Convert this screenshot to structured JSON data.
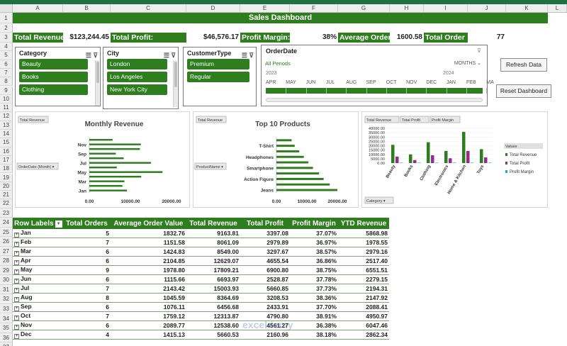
{
  "columns": [
    "A",
    "B",
    "C",
    "D",
    "E",
    "F",
    "G",
    "H",
    "I",
    "J",
    "K",
    "L"
  ],
  "rows": [
    "1",
    "2",
    "3",
    "4",
    "5",
    "6",
    "7",
    "8",
    "9",
    "10",
    "11",
    "12",
    "13",
    "14",
    "15",
    "16",
    "17",
    "18",
    "19",
    "20",
    "21",
    "22",
    "23",
    "24",
    "25",
    "26",
    "27",
    "28",
    "29",
    "30",
    "31",
    "32",
    "33",
    "34",
    "35",
    "36",
    "37"
  ],
  "title": "Sales Dashboard",
  "kpis": {
    "total_revenue_label": "Total Revenue",
    "total_revenue_value": "$123,244.45",
    "total_profit_label": "Total Profit:",
    "total_profit_value": "$46,576.17",
    "profit_margin_label": "Profit Margin:",
    "profit_margin_value": "38%",
    "avg_order_label": "Average Order",
    "avg_order_value": "1600.58",
    "total_order_label": "Total Order",
    "total_order_value": "77"
  },
  "slicers": {
    "category": {
      "title": "Category",
      "items": [
        "Beauty",
        "Books",
        "Clothing"
      ]
    },
    "city": {
      "title": "City",
      "items": [
        "London",
        "Los Angeles",
        "New York City"
      ]
    },
    "customer_type": {
      "title": "CustomerType",
      "items": [
        "Premium",
        "Regular"
      ]
    }
  },
  "timeline": {
    "title": "OrderDate",
    "all_periods": "All Periods",
    "period": "MONTHS",
    "years": [
      "2023",
      "2024"
    ],
    "months": [
      "APR",
      "MAY",
      "JUN",
      "JUL",
      "AUG",
      "SEP",
      "OCT",
      "NOV",
      "DEC",
      "JAN",
      "FEB",
      "MA"
    ]
  },
  "buttons": {
    "refresh": "Refresh Data",
    "reset": "Reset Dashboard"
  },
  "chart_data": [
    {
      "type": "bar",
      "title": "Monthly Revenue",
      "field_value": "Total Revenue",
      "field_axis": "OrderDate (Month)",
      "categories": [
        "Jan",
        "Feb",
        "Mar",
        "Apr",
        "May",
        "Jun",
        "Jul",
        "Aug",
        "Sep",
        "Oct",
        "Nov",
        "Dec"
      ],
      "values": [
        9163.81,
        8061.09,
        8549.0,
        12629.07,
        17809.21,
        6693.97,
        15003.93,
        8364.69,
        6456.68,
        12313.87,
        12538.6,
        5660.53
      ],
      "tick_labels": [
        "Jan",
        "Mar",
        "May",
        "Jul",
        "Sep",
        "Nov"
      ],
      "xlim": [
        0,
        20000
      ],
      "xticks": [
        "0.00",
        "10000.00",
        "20000.00"
      ]
    },
    {
      "type": "bar",
      "title": "Top 10 Products",
      "field_value": "Total Revenue",
      "field_axis": "ProductName",
      "categories": [
        "Jeans",
        "",
        "Action Figure",
        "",
        "Smartphone",
        "",
        "Headphones",
        "",
        "T-Shirt",
        ""
      ],
      "values": [
        20000,
        17500,
        15500,
        14000,
        12000,
        10500,
        9000,
        7500,
        6000,
        5000
      ],
      "tick_labels": [
        "Jeans",
        "Action Figure",
        "Smartphone",
        "Headphones",
        "T-Shirt"
      ],
      "xlim": [
        0,
        20000
      ],
      "xticks": [
        "0.00",
        "10000.00",
        "20000.00"
      ]
    },
    {
      "type": "bar",
      "field_values": [
        "Total Revenue",
        "Total Profit",
        "Profit Margin"
      ],
      "field_axis": "Category",
      "categories": [
        "Beauty",
        "Books",
        "Clothing",
        "Electronics",
        "Home & Kitchen",
        "Toys"
      ],
      "series": [
        {
          "name": "Total Revenue",
          "color": "#2e7d1e",
          "values": [
            21000,
            10000,
            24000,
            14000,
            36000,
            16000
          ]
        },
        {
          "name": "Total Profit",
          "color": "#8e2f8e",
          "values": [
            7500,
            3500,
            9000,
            5500,
            14000,
            6500
          ]
        },
        {
          "name": "Profit Margin",
          "color": "#26a6c4",
          "values": [
            0.38,
            0.37,
            0.38,
            0.39,
            0.38,
            0.4
          ]
        }
      ],
      "legend_title": "Values",
      "ylim": [
        0,
        40000
      ],
      "yticks": [
        "0.00",
        "5000.00",
        "10000.00",
        "15000.00",
        "20000.00",
        "25000.00",
        "30000.00",
        "35000.00",
        "40000.00"
      ]
    }
  ],
  "pivot": {
    "headers": [
      "Row Labels",
      "Total Orders",
      "Average Order Value",
      "Total Revenue",
      "Total Profit",
      "Profit Margin",
      "YTD Revenue"
    ],
    "rows": [
      [
        "Jan",
        "5",
        "1832.76",
        "9163.81",
        "3397.08",
        "37.07%",
        "5868.98"
      ],
      [
        "Feb",
        "7",
        "1151.58",
        "8061.09",
        "2979.89",
        "36.97%",
        "1978.55"
      ],
      [
        "Mar",
        "6",
        "1424.83",
        "8549.00",
        "3297.67",
        "38.57%",
        "2979.16"
      ],
      [
        "Apr",
        "6",
        "2104.85",
        "12629.07",
        "4655.54",
        "36.86%",
        "2517.40"
      ],
      [
        "May",
        "9",
        "1978.80",
        "17809.21",
        "6900.80",
        "38.75%",
        "6551.51"
      ],
      [
        "Jun",
        "6",
        "1115.66",
        "6693.97",
        "2528.87",
        "37.78%",
        "2279.15"
      ],
      [
        "Jul",
        "7",
        "2143.42",
        "15003.93",
        "5660.85",
        "37.73%",
        "2194.31"
      ],
      [
        "Aug",
        "8",
        "1045.59",
        "8364.69",
        "3208.53",
        "38.36%",
        "2147.92"
      ],
      [
        "Sep",
        "6",
        "1076.11",
        "6456.68",
        "2433.91",
        "37.70%",
        "2088.41"
      ],
      [
        "Oct",
        "7",
        "1759.12",
        "12313.87",
        "4790.80",
        "38.91%",
        "4950.97"
      ],
      [
        "Nov",
        "6",
        "2089.77",
        "12538.60",
        "4561.27",
        "36.38%",
        "6047.46"
      ],
      [
        "Dec",
        "4",
        "1415.13",
        "5660.53",
        "2160.96",
        "38.18%",
        "2862.34"
      ]
    ]
  },
  "watermark": "exceldemy"
}
